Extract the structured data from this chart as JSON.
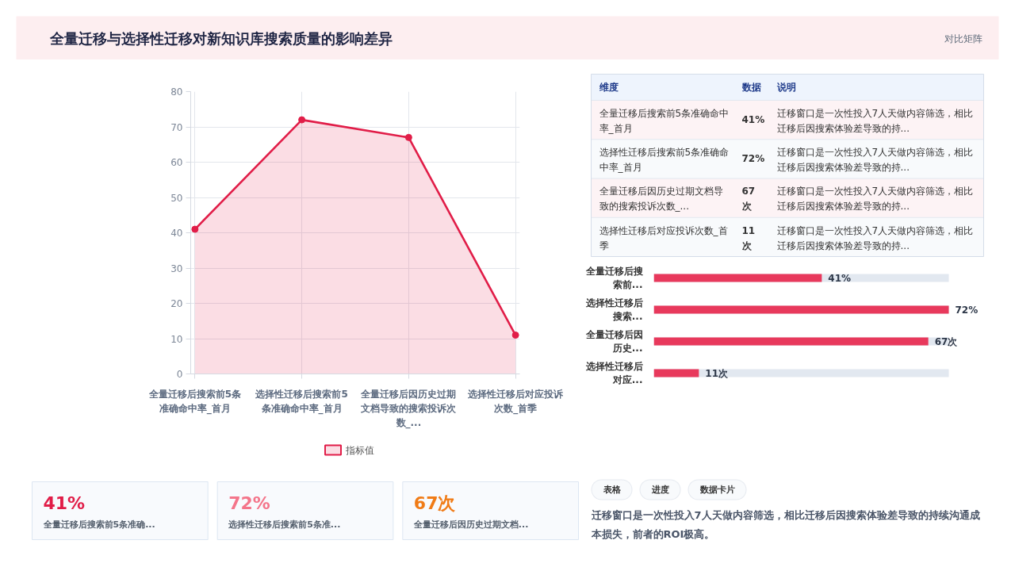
{
  "chart_data": [
    {
      "type": "area",
      "title": "全量迁移与选择性迁移对新知识库搜索质量的影响差异",
      "categories": [
        "全量迁移后搜索前5条准确命中率_首月",
        "选择性迁移后搜索前5条准确命中率_首月",
        "全量迁移后因历史过期文档导致的搜索投诉次数_...",
        "选择性迁移后对应投诉次数_首季"
      ],
      "series": [
        {
          "name": "指标值",
          "color": "#e11d48",
          "values": [
            41,
            72,
            67,
            11
          ]
        }
      ],
      "ylim": [
        0,
        80
      ],
      "yticks": [
        0,
        10,
        20,
        30,
        40,
        50,
        60,
        70,
        80
      ],
      "grid": true,
      "legend": "bottom",
      "marker": "circle"
    },
    {
      "type": "other",
      "title": "对比矩阵",
      "ylabel": "维度",
      "categories": [
        "数据",
        "说明"
      ],
      "y_categories": [
        "全量迁移后搜索前5条准确命中率_首月",
        "选择性迁移后搜索前5条准确命中率_首月",
        "全量迁移后因历史过期文档导致的搜索投诉次数_...",
        "选择性迁移后对应投诉次数_首季"
      ],
      "cell_labels": [
        [
          "41%",
          "迁移窗口是一次性投入7人天做内容筛选，相比迁移后因搜索体验差导致的持..."
        ],
        [
          "72%",
          "迁移窗口是一次性投入7人天做内容筛选，相比迁移后因搜索体验差导致的持..."
        ],
        [
          "67次",
          "迁移窗口是一次性投入7人天做内容筛选，相比迁移后因搜索体验差导致的持..."
        ],
        [
          "11次",
          "迁移窗口是一次性投入7人天做内容筛选，相比迁移后因搜索体验差导致的持..."
        ]
      ]
    },
    {
      "type": "bar",
      "orientation": "horizontal",
      "categories": [
        "全量迁移后搜索前...",
        "选择性迁移后搜索...",
        "全量迁移后因历史...",
        "选择性迁移后对应..."
      ],
      "values": [
        41,
        72,
        67,
        11
      ],
      "value_labels": [
        "41%",
        "72%",
        "67次",
        "11次"
      ],
      "color": "#e8395c",
      "tick_labels": "y"
    },
    {
      "type": "other",
      "categories": [
        "全量迁移后搜索前5条准确...",
        "选择性迁移后搜索前5条准...",
        "全量迁移后因历史过期文档..."
      ],
      "values": [
        41,
        72,
        67
      ],
      "value_labels": [
        "41%",
        "72%",
        "67次"
      ]
    },
    {
      "type": "other",
      "categories": [
        "表格",
        "进度",
        "数据卡片"
      ],
      "annotations": [
        "迁移窗口是一次性投入7人天做内容筛选，相比迁移后因搜索体验差导致的持续沟通成本损失，前者的ROI极高。"
      ]
    }
  ]
}
